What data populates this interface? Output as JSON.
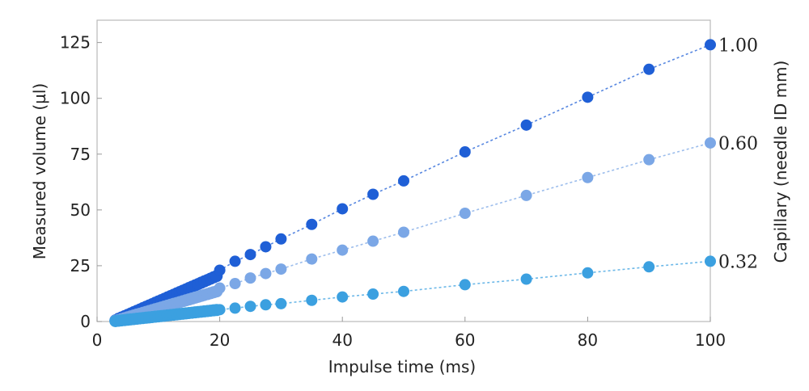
{
  "chart_data": {
    "type": "scatter",
    "title": "",
    "xlabel": "Impulse time (ms)",
    "ylabel": "Measured volume (µl)",
    "y2label": "Capillary (needle ID mm)",
    "xlim": [
      0,
      100
    ],
    "ylim": [
      0,
      135
    ],
    "xticks": [
      "0",
      "20",
      "40",
      "60",
      "80",
      "100"
    ],
    "yticks": [
      "0",
      "25",
      "50",
      "75",
      "100",
      "125"
    ],
    "grid": false,
    "legend": "none",
    "series": [
      {
        "name": "1.00",
        "color": "#1f5fd6",
        "x": [
          3,
          3.5,
          4,
          4.5,
          5,
          5.5,
          6,
          6.5,
          7,
          7.5,
          8,
          8.5,
          9,
          9.5,
          10,
          10.5,
          11,
          11.5,
          12,
          12.5,
          13,
          13.5,
          14,
          14.5,
          15,
          15.5,
          16,
          16.5,
          17,
          17.5,
          18,
          18.5,
          19,
          19.5,
          20,
          22.5,
          25,
          27.5,
          30,
          35,
          40,
          45,
          50,
          60,
          70,
          80,
          90,
          100
        ],
        "y": [
          0.5,
          1.2,
          1.8,
          2.4,
          3,
          3.6,
          4.2,
          4.8,
          5.4,
          6,
          6.6,
          7.2,
          7.8,
          8.4,
          9,
          9.6,
          10.2,
          10.8,
          11.4,
          12,
          12.6,
          13.2,
          13.8,
          14.4,
          15,
          15.6,
          16.2,
          16.8,
          17.4,
          18,
          18.6,
          19.2,
          19.8,
          20.4,
          23,
          27,
          30,
          33.5,
          37,
          43.5,
          50.5,
          57,
          63,
          76,
          88,
          100.5,
          113,
          124
        ]
      },
      {
        "name": "0.60",
        "color": "#7ba7e6",
        "x": [
          3,
          3.5,
          4,
          4.5,
          5,
          5.5,
          6,
          6.5,
          7,
          7.5,
          8,
          8.5,
          9,
          9.5,
          10,
          10.5,
          11,
          11.5,
          12,
          12.5,
          13,
          13.5,
          14,
          14.5,
          15,
          15.5,
          16,
          16.5,
          17,
          17.5,
          18,
          18.5,
          19,
          19.5,
          20,
          22.5,
          25,
          27.5,
          30,
          35,
          40,
          45,
          50,
          60,
          70,
          80,
          90,
          100
        ],
        "y": [
          0.3,
          0.7,
          1.1,
          1.5,
          1.9,
          2.3,
          2.7,
          3.1,
          3.5,
          3.9,
          4.3,
          4.7,
          5.1,
          5.5,
          5.9,
          6.3,
          6.7,
          7.1,
          7.5,
          7.9,
          8.3,
          8.7,
          9.1,
          9.5,
          9.9,
          10.3,
          10.7,
          11.1,
          11.5,
          11.9,
          12.3,
          12.7,
          13.1,
          13.5,
          15,
          17,
          19.5,
          21.5,
          23.5,
          28,
          32,
          36,
          40,
          48.5,
          56.5,
          64.5,
          72.5,
          80
        ]
      },
      {
        "name": "0.32",
        "color": "#3ba0e0",
        "x": [
          3,
          3.5,
          4,
          4.5,
          5,
          5.5,
          6,
          6.5,
          7,
          7.5,
          8,
          8.5,
          9,
          9.5,
          10,
          10.5,
          11,
          11.5,
          12,
          12.5,
          13,
          13.5,
          14,
          14.5,
          15,
          15.5,
          16,
          16.5,
          17,
          17.5,
          18,
          18.5,
          19,
          19.5,
          20,
          22.5,
          25,
          27.5,
          30,
          35,
          40,
          45,
          50,
          60,
          70,
          80,
          90,
          100
        ],
        "y": [
          0.2,
          0.35,
          0.5,
          0.65,
          0.8,
          0.95,
          1.1,
          1.25,
          1.4,
          1.55,
          1.7,
          1.85,
          2,
          2.15,
          2.3,
          2.45,
          2.6,
          2.75,
          2.9,
          3.05,
          3.2,
          3.35,
          3.5,
          3.65,
          3.8,
          3.95,
          4.1,
          4.25,
          4.4,
          4.55,
          4.7,
          4.85,
          5,
          5.15,
          5.3,
          6,
          6.8,
          7.5,
          8,
          9.5,
          11,
          12.3,
          13.5,
          16.5,
          19,
          21.8,
          24.5,
          27
        ]
      }
    ]
  }
}
